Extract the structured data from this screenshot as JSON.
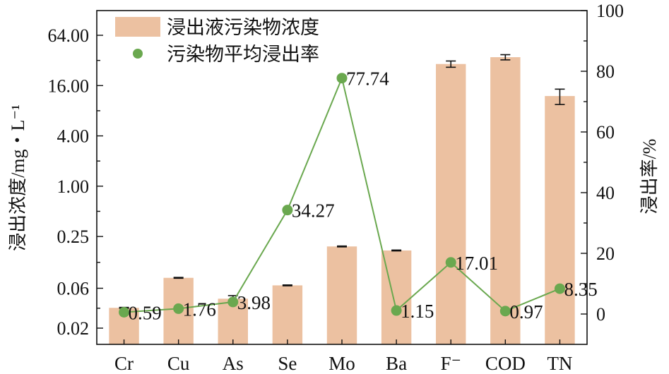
{
  "chart_data": {
    "type": "bar+line",
    "categories": [
      "Cr",
      "Cu",
      "As",
      "Se",
      "Mo",
      "Ba",
      "F⁻",
      "COD",
      "TN"
    ],
    "legend": {
      "placement": "top-left",
      "bar_label": "浸出液污染物浓度",
      "line_label": "污染物平均浸出率"
    },
    "left_axis": {
      "label": "浸出浓度/mg・L⁻¹",
      "scale": "log2",
      "ticks": [
        0.02,
        0.06,
        0.25,
        1.0,
        4.0,
        16.0,
        64.0
      ],
      "tick_labels": [
        "0.02",
        "0.06",
        "0.25",
        "1.00",
        "4.00",
        "16.00",
        "64.00"
      ]
    },
    "right_axis": {
      "label": "浸出率/%",
      "ylim": [
        -10,
        100
      ],
      "ticks": [
        0,
        20,
        40,
        60,
        80,
        100
      ],
      "tick_labels": [
        "0",
        "20",
        "40",
        "60",
        "80",
        "100"
      ]
    },
    "bar_series": {
      "name": "浸出液污染物浓度",
      "color": "#ecc1a1",
      "values": [
        0.035,
        0.08,
        0.045,
        0.065,
        0.19,
        0.17,
        29,
        35,
        12
      ],
      "errors": [
        0,
        0,
        0.004,
        0,
        0,
        0,
        2.5,
        2.5,
        2.5
      ]
    },
    "line_series": {
      "name": "污染物平均浸出率",
      "color": "#6aa84f",
      "values": [
        0.59,
        1.76,
        3.98,
        34.27,
        77.74,
        1.15,
        17.01,
        0.97,
        8.35
      ],
      "labels": [
        "0.59",
        "1.76",
        "3.98",
        "34.27",
        "77.74",
        "1.15",
        "17.01",
        "0.97",
        "8.35"
      ]
    }
  }
}
